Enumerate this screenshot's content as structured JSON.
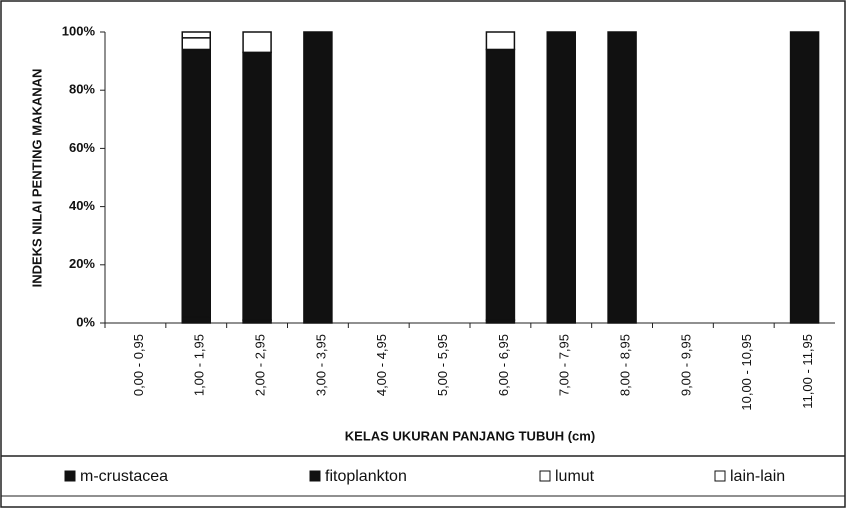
{
  "chart_data": {
    "type": "stacked-bar",
    "x_label": "KELAS UKURAN PANJANG TUBUH (cm)",
    "y_label": "INDEKS NILAI PENTING MAKANAN",
    "categories": [
      "0,00 - 0,95",
      "1,00 - 1,95",
      "2,00 - 2,95",
      "3,00 - 3,95",
      "4,00 - 4,95",
      "5,00 - 5,95",
      "6,00 - 6,95",
      "7,00 - 7,95",
      "8,00 - 8,95",
      "9,00 - 9,95",
      "10,00 - 10,95",
      "11,00 - 11,95"
    ],
    "series": [
      {
        "name": "m-crustacea",
        "color": "#111111",
        "values": [
          0,
          2,
          1,
          0,
          0,
          0,
          1,
          0,
          0,
          0,
          0,
          0
        ]
      },
      {
        "name": "fitoplankton",
        "color": "#111111",
        "values": [
          0,
          92,
          92,
          100,
          0,
          0,
          93,
          100,
          100,
          0,
          0,
          100
        ]
      },
      {
        "name": "lumut",
        "color": "#ffffff",
        "values": [
          0,
          4,
          7,
          0,
          0,
          0,
          6,
          0,
          0,
          0,
          0,
          0
        ]
      },
      {
        "name": "lain-lain",
        "color": "#ffffff",
        "values": [
          0,
          2,
          0,
          0,
          0,
          0,
          0,
          0,
          0,
          0,
          0,
          0
        ]
      }
    ],
    "ylim": [
      0,
      100
    ],
    "yticks": [
      {
        "value": 0,
        "label": "0%"
      },
      {
        "value": 20,
        "label": "20%"
      },
      {
        "value": 40,
        "label": "40%"
      },
      {
        "value": 60,
        "label": "60%"
      },
      {
        "value": 80,
        "label": "80%"
      },
      {
        "value": 100,
        "label": "100%"
      }
    ],
    "legend": "bottom"
  }
}
